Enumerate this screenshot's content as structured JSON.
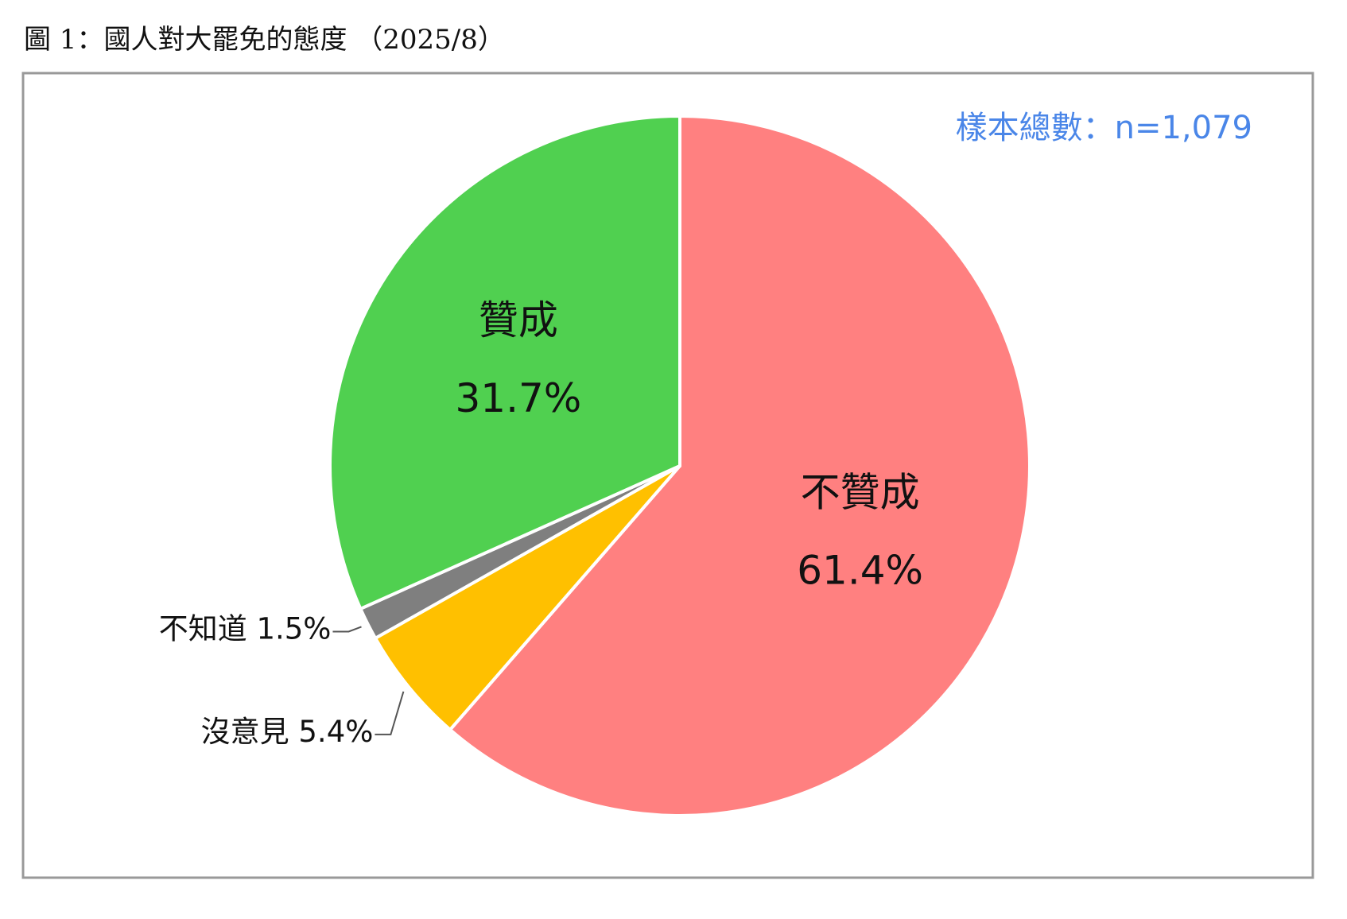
{
  "chart_data": {
    "type": "pie",
    "title": "圖 1：國人對大罷免的態度 （2025/8）",
    "annotation": "樣本總數：n=1,079",
    "categories": [
      "不贊成",
      "沒意見",
      "不知道",
      "贊成"
    ],
    "values": [
      61.4,
      5.4,
      1.5,
      31.7
    ],
    "value_labels": [
      "61.4%",
      "5.4%",
      "1.5%",
      "31.7%"
    ],
    "colors": [
      "#ff8080",
      "#ffc000",
      "#7f7f7f",
      "#50d050"
    ]
  }
}
